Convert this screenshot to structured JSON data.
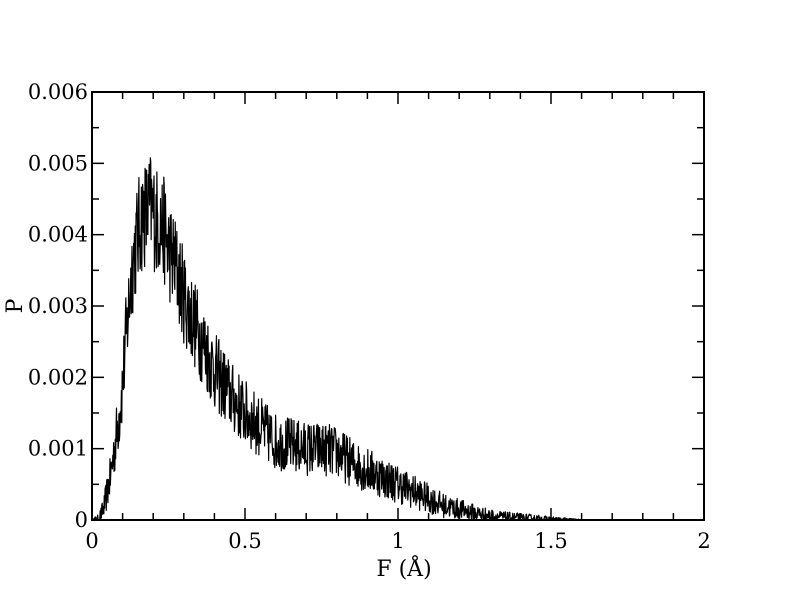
{
  "chart_data": {
    "type": "line",
    "title": "",
    "xlabel": "F (Å)",
    "ylabel": "P",
    "xlim": [
      0,
      2
    ],
    "ylim": [
      0,
      0.006
    ],
    "x_ticks": [
      "0",
      "0.5",
      "1",
      "1.5",
      "2"
    ],
    "y_ticks": [
      "0",
      "0.001",
      "0.002",
      "0.003",
      "0.004",
      "0.005",
      "0.006"
    ],
    "grid": false,
    "legend": "none",
    "line_color": "#000000",
    "series": [
      {
        "x": [
          0.0,
          0.02,
          0.03,
          0.04,
          0.05,
          0.06,
          0.07,
          0.08,
          0.09,
          0.1,
          0.11,
          0.12,
          0.13,
          0.14,
          0.15,
          0.16,
          0.17,
          0.18,
          0.19,
          0.2,
          0.21,
          0.22,
          0.23,
          0.24,
          0.25,
          0.27,
          0.29,
          0.31,
          0.33,
          0.35,
          0.37,
          0.4,
          0.43,
          0.46,
          0.5,
          0.55,
          0.6,
          0.65,
          0.7,
          0.75,
          0.8,
          0.85,
          0.9,
          0.95,
          1.0,
          1.05,
          1.1,
          1.15,
          1.2,
          1.25,
          1.3,
          1.35,
          1.4,
          1.45,
          1.5,
          1.55,
          1.6
        ],
        "y": [
          0.0,
          2e-05,
          8e-05,
          0.0002,
          0.0004,
          0.0006,
          0.0009,
          0.0012,
          0.0015,
          0.0019,
          0.0025,
          0.003,
          0.0035,
          0.0038,
          0.004,
          0.0042,
          0.0043,
          0.0043,
          0.0044,
          0.0043,
          0.0042,
          0.0042,
          0.0041,
          0.004,
          0.0038,
          0.0036,
          0.0033,
          0.003,
          0.0028,
          0.0026,
          0.0024,
          0.0021,
          0.0019,
          0.0017,
          0.0015,
          0.0013,
          0.0011,
          0.00105,
          0.001,
          0.001,
          0.00095,
          0.0008,
          0.0007,
          0.0006,
          0.0005,
          0.0004,
          0.0003,
          0.0002,
          0.00015,
          0.0001,
          6e-05,
          4e-05,
          3e-05,
          2e-05,
          1e-05,
          5e-06,
          0.0
        ]
      }
    ]
  }
}
